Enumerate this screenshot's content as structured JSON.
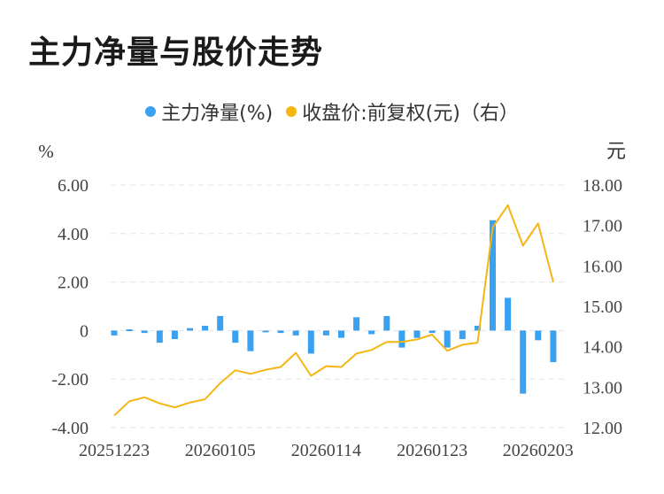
{
  "title": "主力净量与股价走势",
  "chart_data": {
    "type": "bar+line",
    "legend": [
      {
        "name": "主力净量(%)",
        "color": "#3aa0f0"
      },
      {
        "name": "收盘价:前复权(元)（右）",
        "color": "#f5b614"
      }
    ],
    "left_axis": {
      "unit": "%",
      "ylim": [
        -4,
        6
      ],
      "ticks": [
        "6.00",
        "4.00",
        "2.00",
        "0",
        "-2.00",
        "-4.00"
      ]
    },
    "right_axis": {
      "unit": "元",
      "ylim": [
        12,
        18
      ],
      "ticks": [
        "18.00",
        "17.00",
        "16.00",
        "15.00",
        "14.00",
        "13.00",
        "12.00"
      ]
    },
    "x_ticks": [
      "20251223",
      "20260105",
      "20260114",
      "20260123",
      "20260203"
    ],
    "series": [
      {
        "name": "主力净量(%)",
        "kind": "bar",
        "values": [
          -0.2,
          0.05,
          -0.1,
          -0.5,
          -0.35,
          0.1,
          0.2,
          0.6,
          -0.5,
          -0.85,
          -0.05,
          -0.1,
          -0.2,
          -0.95,
          -0.2,
          -0.3,
          0.55,
          -0.15,
          0.6,
          -0.7,
          -0.3,
          -0.1,
          -0.7,
          -0.35,
          0.2,
          4.55,
          1.35,
          -2.6,
          -0.4,
          -1.3
        ]
      },
      {
        "name": "收盘价:前复权(元)（右）",
        "kind": "line",
        "values": [
          12.3,
          12.65,
          12.75,
          12.6,
          12.5,
          12.62,
          12.7,
          13.1,
          13.42,
          13.33,
          13.43,
          13.5,
          13.85,
          13.28,
          13.52,
          13.5,
          13.83,
          13.92,
          14.12,
          14.12,
          14.18,
          14.3,
          13.9,
          14.05,
          14.1,
          16.95,
          17.5,
          16.5,
          17.05,
          15.6
        ]
      }
    ]
  }
}
